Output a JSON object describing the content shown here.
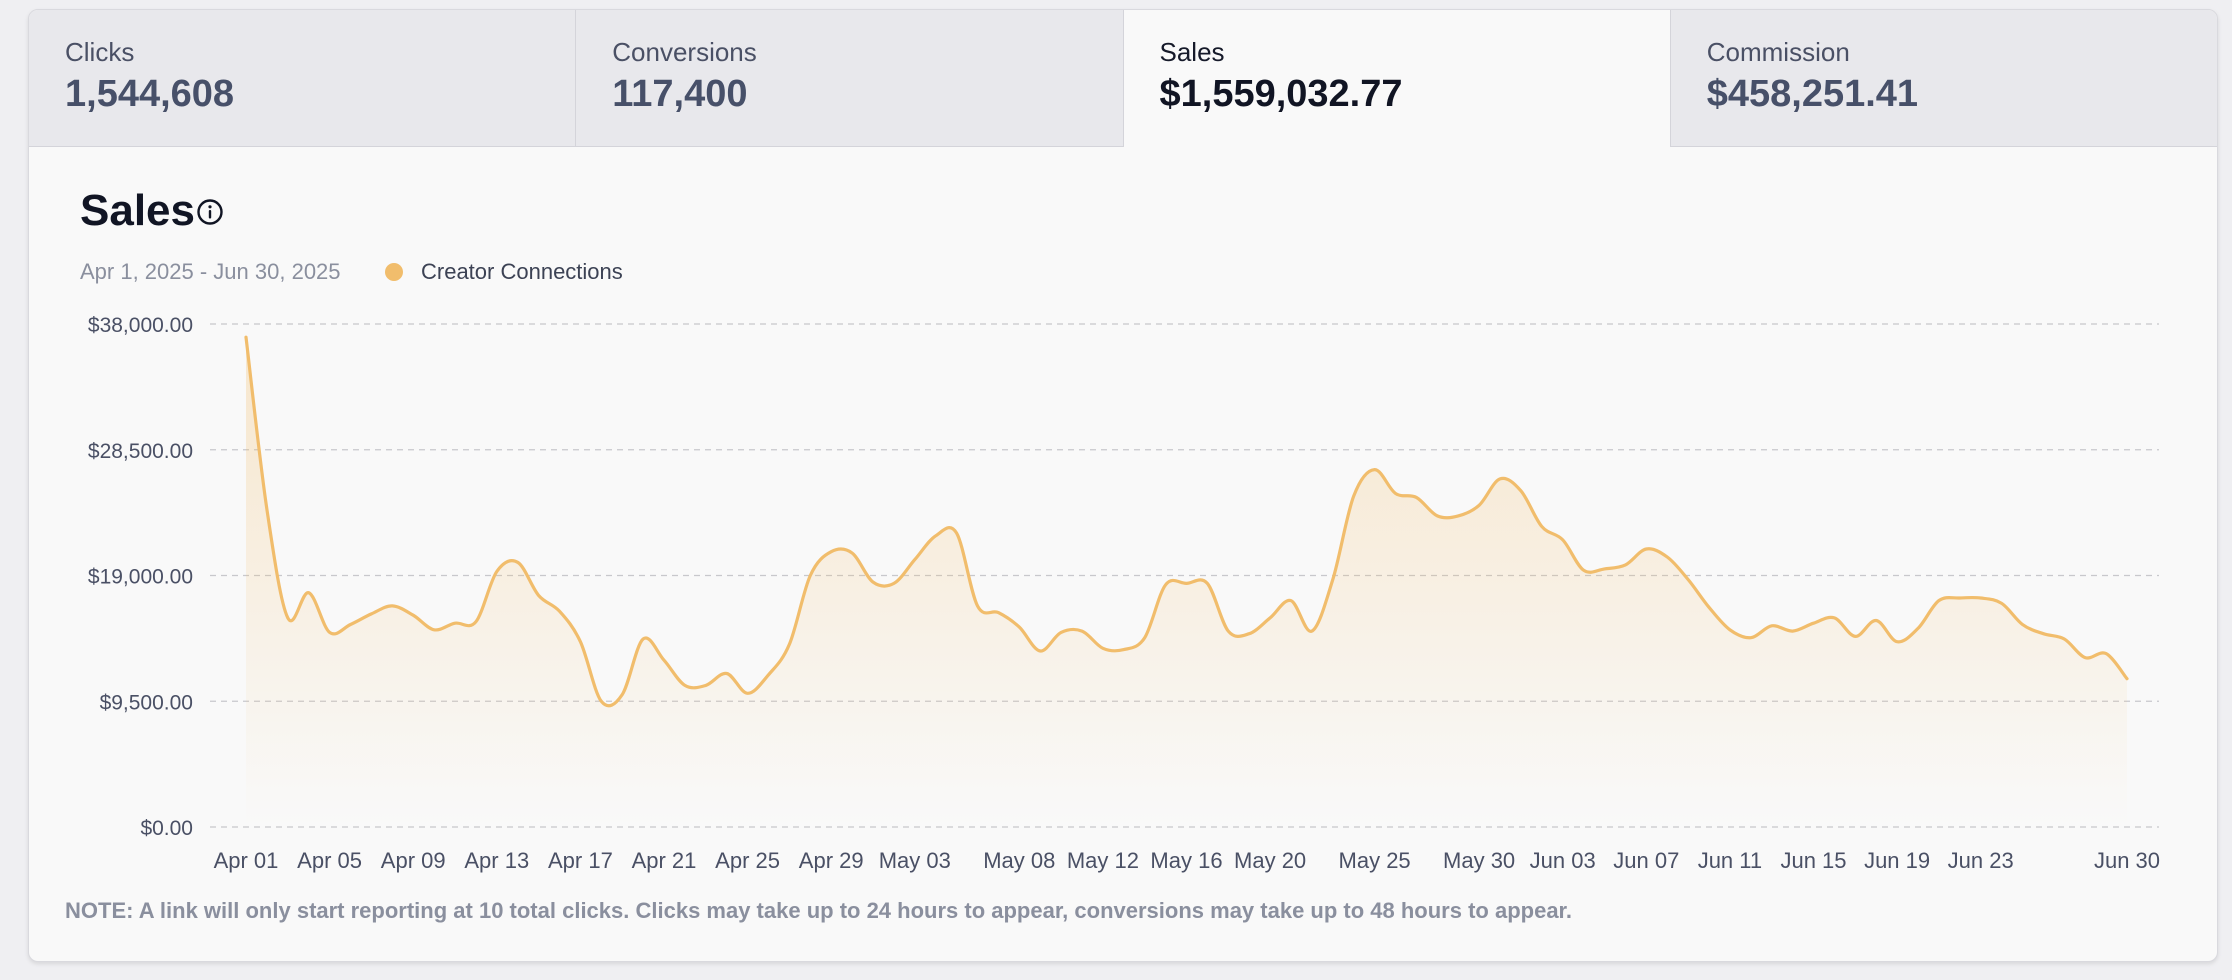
{
  "tabs": [
    {
      "label": "Clicks",
      "value": "1,544,608"
    },
    {
      "label": "Conversions",
      "value": "117,400"
    },
    {
      "label": "Sales",
      "value": "$1,559,032.77",
      "active": true
    },
    {
      "label": "Commission",
      "value": "$458,251.41"
    }
  ],
  "chart_header": {
    "title": "Sales",
    "date_range": "Apr 1, 2025 - Jun 30, 2025",
    "info_icon": "info-circle-icon"
  },
  "note": "NOTE: A link will only start reporting at 10 total clicks. Clicks may take up to 24 hours to appear, conversions may take up to 48 hours to appear.",
  "colors": {
    "series": "#f1bd6c",
    "grid": "#c8c8cc"
  },
  "chart_data": {
    "type": "area",
    "ylim": [
      0,
      38000
    ],
    "yticks": [
      0,
      9500,
      19000,
      28500,
      38000
    ],
    "ytick_labels": [
      "$0.00",
      "$9,500.00",
      "$19,000.00",
      "$28,500.00",
      "$38,000.00"
    ],
    "grid": true,
    "legend_position": "top-left",
    "x_ticks": [
      {
        "day": 1,
        "label": "Apr 01"
      },
      {
        "day": 5,
        "label": "Apr 05"
      },
      {
        "day": 9,
        "label": "Apr 09"
      },
      {
        "day": 13,
        "label": "Apr 13"
      },
      {
        "day": 17,
        "label": "Apr 17"
      },
      {
        "day": 21,
        "label": "Apr 21"
      },
      {
        "day": 25,
        "label": "Apr 25"
      },
      {
        "day": 29,
        "label": "Apr 29"
      },
      {
        "day": 33,
        "label": "May 03"
      },
      {
        "day": 38,
        "label": "May 08"
      },
      {
        "day": 42,
        "label": "May 12"
      },
      {
        "day": 46,
        "label": "May 16"
      },
      {
        "day": 50,
        "label": "May 20"
      },
      {
        "day": 55,
        "label": "May 25"
      },
      {
        "day": 60,
        "label": "May 30"
      },
      {
        "day": 64,
        "label": "Jun 03"
      },
      {
        "day": 68,
        "label": "Jun 07"
      },
      {
        "day": 72,
        "label": "Jun 11"
      },
      {
        "day": 76,
        "label": "Jun 15"
      },
      {
        "day": 80,
        "label": "Jun 19"
      },
      {
        "day": 84,
        "label": "Jun 23"
      },
      {
        "day": 91,
        "label": "Jun 30"
      }
    ],
    "series": [
      {
        "name": "Creator Connections",
        "values": [
          37000,
          24000,
          15800,
          17700,
          14700,
          15300,
          16100,
          16700,
          16000,
          14900,
          15400,
          15500,
          19300,
          20000,
          17500,
          16300,
          14000,
          9500,
          10000,
          14200,
          12600,
          10700,
          10700,
          11600,
          10100,
          11500,
          13800,
          19000,
          20800,
          20700,
          18500,
          18400,
          20200,
          22000,
          22200,
          16700,
          16200,
          15100,
          13300,
          14700,
          14800,
          13500,
          13400,
          14300,
          18300,
          18400,
          18400,
          14800,
          14600,
          15800,
          17100,
          14800,
          18700,
          25000,
          27000,
          25200,
          24900,
          23500,
          23500,
          24300,
          26300,
          25400,
          22700,
          21700,
          19400,
          19500,
          19800,
          21000,
          20400,
          18700,
          16600,
          14900,
          14300,
          15200,
          14800,
          15400,
          15800,
          14400,
          15600,
          14000,
          15000,
          17100,
          17300,
          17300,
          16900,
          15300,
          14600,
          14200,
          12800,
          13100,
          11200
        ]
      }
    ]
  }
}
